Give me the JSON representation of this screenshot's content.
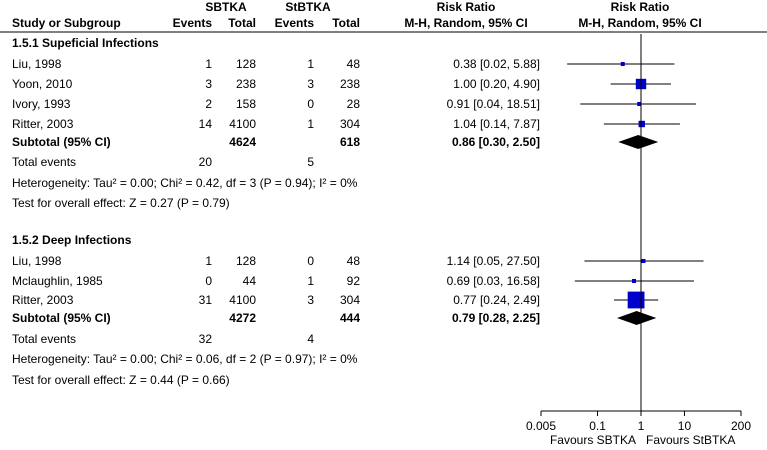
{
  "header": {
    "group1": "SBTKA",
    "group2": "StBTKA",
    "rr_title": "Risk Ratio",
    "rr_subtitle": "M-H, Random, 95% CI",
    "plot_title": "Risk Ratio",
    "plot_subtitle": "M-H, Random, 95% CI",
    "study_col": "Study or Subgroup",
    "events1": "Events",
    "total1": "Total",
    "events2": "Events",
    "total2": "Total"
  },
  "chart_data": {
    "type": "forest",
    "x_scale": "log",
    "x_ticks": [
      {
        "value": 0.005,
        "label": "0.005"
      },
      {
        "value": 0.1,
        "label": "0.1"
      },
      {
        "value": 1,
        "label": "1"
      },
      {
        "value": 10,
        "label": "10"
      },
      {
        "value": 200,
        "label": "200"
      }
    ],
    "xlim": [
      0.005,
      200
    ],
    "favours_left": "Favours SBTKA",
    "favours_right": "Favours StBTKA",
    "groups": [
      {
        "title": "1.5.1 Supeficial Infections",
        "studies": [
          {
            "name": "Liu, 1998",
            "e1": "1",
            "t1": "128",
            "e2": "1",
            "t2": "48",
            "rr_text": "0.38 [0.02, 5.88]",
            "rr": 0.38,
            "lo": 0.02,
            "hi": 5.88,
            "weight": 1
          },
          {
            "name": "Yoon, 2010",
            "e1": "3",
            "t1": "238",
            "e2": "3",
            "t2": "238",
            "rr_text": "1.00 [0.20, 4.90]",
            "rr": 1.0,
            "lo": 0.2,
            "hi": 4.9,
            "weight": 2.6
          },
          {
            "name": "Ivory, 1993",
            "e1": "2",
            "t1": "158",
            "e2": "0",
            "t2": "28",
            "rr_text": "0.91 [0.04, 18.51]",
            "rr": 0.91,
            "lo": 0.04,
            "hi": 18.51,
            "weight": 1
          },
          {
            "name": "Ritter, 2003",
            "e1": "14",
            "t1": "4100",
            "e2": "1",
            "t2": "304",
            "rr_text": "1.04 [0.14, 7.87]",
            "rr": 1.04,
            "lo": 0.14,
            "hi": 7.87,
            "weight": 1.6
          }
        ],
        "subtotal": {
          "label": "Subtotal (95% CI)",
          "t1": "4624",
          "t2": "618",
          "rr_text": "0.86 [0.30, 2.50]",
          "rr": 0.86,
          "lo": 0.3,
          "hi": 2.5
        },
        "total_events_label": "Total events",
        "total_events1": "20",
        "total_events2": "5",
        "heterogeneity": "Heterogeneity: Tau² = 0.00; Chi² = 0.42, df = 3 (P = 0.94); I² = 0%",
        "overall_effect": "Test for overall effect: Z = 0.27 (P = 0.79)"
      },
      {
        "title": "1.5.2 Deep Infections",
        "studies": [
          {
            "name": "Liu, 1998",
            "e1": "1",
            "t1": "128",
            "e2": "0",
            "t2": "48",
            "rr_text": "1.14 [0.05, 27.50]",
            "rr": 1.14,
            "lo": 0.05,
            "hi": 27.5,
            "weight": 1
          },
          {
            "name": "Mclaughlin, 1985",
            "e1": "0",
            "t1": "44",
            "e2": "1",
            "t2": "92",
            "rr_text": "0.69 [0.03, 16.58]",
            "rr": 0.69,
            "lo": 0.03,
            "hi": 16.58,
            "weight": 1
          },
          {
            "name": "Ritter, 2003",
            "e1": "31",
            "t1": "4100",
            "e2": "3",
            "t2": "304",
            "rr_text": "0.77 [0.24, 2.49]",
            "rr": 0.77,
            "lo": 0.24,
            "hi": 2.49,
            "weight": 4.2
          }
        ],
        "subtotal": {
          "label": "Subtotal (95% CI)",
          "t1": "4272",
          "t2": "444",
          "rr_text": "0.79 [0.28, 2.25]",
          "rr": 0.79,
          "lo": 0.28,
          "hi": 2.25
        },
        "total_events_label": "Total events",
        "total_events1": "32",
        "total_events2": "4",
        "heterogeneity": "Heterogeneity: Tau² = 0.00; Chi² = 0.06, df = 2 (P = 0.97); I² = 0%",
        "overall_effect": "Test for overall effect: Z = 0.44 (P = 0.66)"
      }
    ],
    "colors": {
      "marker": "#0000cc",
      "diamond": "#000000",
      "line": "#000000"
    }
  }
}
